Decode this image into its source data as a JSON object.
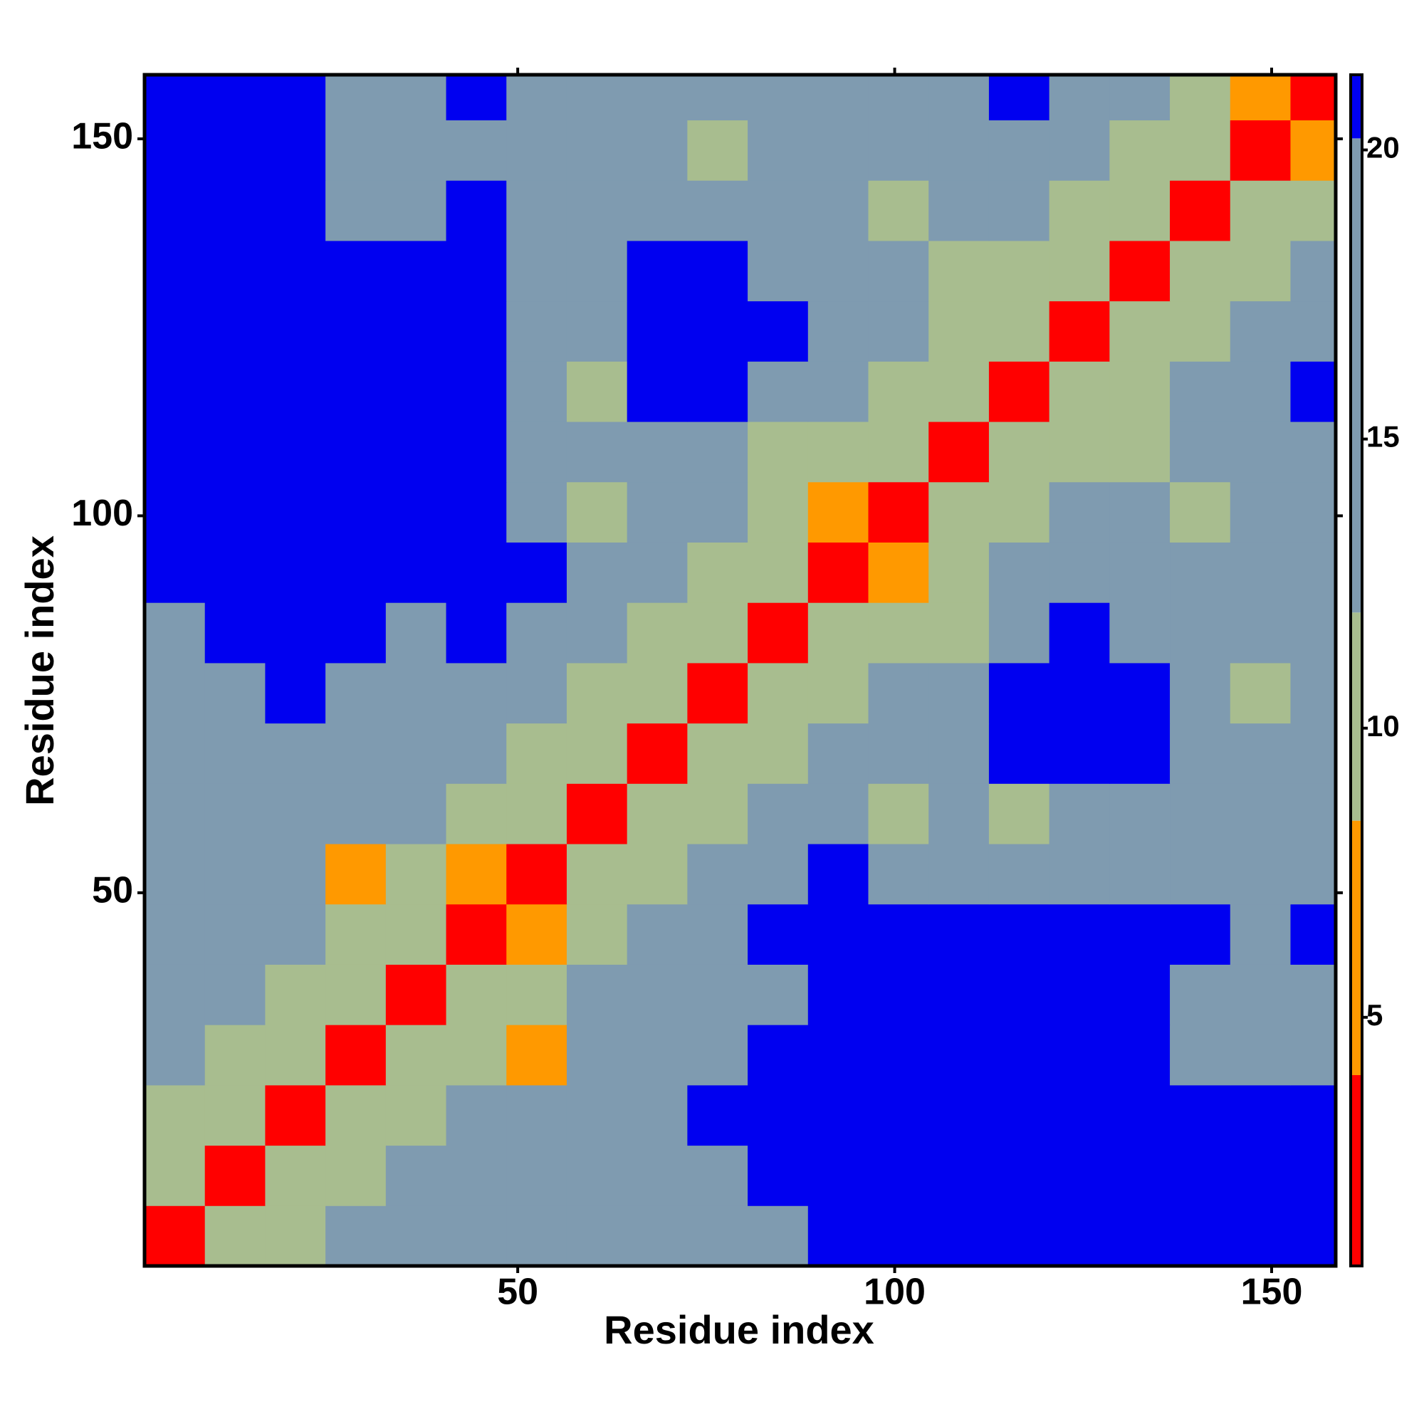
{
  "chart_data": {
    "type": "heatmap",
    "xlabel": "Residue index",
    "ylabel": "Residue index",
    "xlim": [
      0.5,
      158.5
    ],
    "ylim": [
      0.5,
      158.5
    ],
    "xticks": [
      50,
      100,
      150
    ],
    "yticks": [
      50,
      100,
      150
    ],
    "xbins": [
      0.5,
      8.5,
      16.5,
      24.5,
      32.5,
      40.5,
      48.5,
      56.5,
      64.5,
      72.5,
      80.5,
      88.5,
      96.5,
      104.5,
      112.5,
      120.5,
      128.5,
      136.5,
      144.5,
      152.5,
      158.5
    ],
    "ybins": [
      0.5,
      8.5,
      16.5,
      24.5,
      32.5,
      40.5,
      48.5,
      56.5,
      64.5,
      72.5,
      80.5,
      88.5,
      96.5,
      104.5,
      112.5,
      120.5,
      128.5,
      136.5,
      144.5,
      152.5,
      158.5
    ],
    "z": [
      [
        3,
        11,
        11,
        13,
        13,
        13,
        13,
        13,
        15,
        15,
        15,
        21,
        21,
        21,
        21,
        21,
        21,
        21,
        21,
        21
      ],
      [
        11,
        3,
        11,
        11,
        13,
        13,
        13,
        15,
        15,
        15,
        21,
        21,
        21,
        21,
        21,
        21,
        21,
        21,
        21,
        21
      ],
      [
        11,
        11,
        3,
        11,
        11,
        13,
        13,
        15,
        15,
        21,
        21,
        21,
        21,
        21,
        21,
        21,
        21,
        21,
        21,
        21
      ],
      [
        13,
        11,
        11,
        3,
        11,
        11,
        7,
        13,
        15,
        15,
        21,
        21,
        21,
        21,
        21,
        21,
        21,
        15,
        15,
        15
      ],
      [
        13,
        13,
        11,
        11,
        3,
        11,
        11,
        13,
        13,
        13,
        15,
        21,
        21,
        21,
        21,
        21,
        21,
        15,
        15,
        15
      ],
      [
        13,
        13,
        13,
        11,
        11,
        3,
        7,
        11,
        13,
        13,
        21,
        21,
        21,
        21,
        21,
        21,
        21,
        21,
        15,
        21
      ],
      [
        13,
        13,
        13,
        7,
        11,
        7,
        3,
        11,
        11,
        13,
        13,
        21,
        15,
        15,
        15,
        15,
        15,
        15,
        15,
        15
      ],
      [
        13,
        15,
        15,
        13,
        13,
        11,
        11,
        3,
        11,
        11,
        13,
        13,
        11,
        13,
        11,
        13,
        15,
        13,
        15,
        15
      ],
      [
        15,
        15,
        15,
        15,
        13,
        13,
        11,
        11,
        3,
        11,
        11,
        13,
        15,
        15,
        21,
        21,
        21,
        15,
        15,
        15
      ],
      [
        15,
        15,
        21,
        15,
        13,
        13,
        13,
        11,
        11,
        3,
        11,
        11,
        13,
        13,
        21,
        21,
        21,
        15,
        11,
        13
      ],
      [
        15,
        21,
        21,
        21,
        15,
        21,
        13,
        13,
        11,
        11,
        3,
        11,
        11,
        11,
        13,
        21,
        15,
        13,
        13,
        15
      ],
      [
        21,
        21,
        21,
        21,
        21,
        21,
        21,
        13,
        13,
        11,
        11,
        3,
        7,
        11,
        13,
        15,
        13,
        15,
        15,
        15
      ],
      [
        21,
        21,
        21,
        21,
        21,
        21,
        15,
        11,
        15,
        13,
        11,
        7,
        3,
        11,
        11,
        13,
        13,
        11,
        13,
        15
      ],
      [
        21,
        21,
        21,
        21,
        21,
        21,
        15,
        13,
        15,
        13,
        11,
        11,
        11,
        3,
        11,
        11,
        11,
        13,
        15,
        15
      ],
      [
        21,
        21,
        21,
        21,
        21,
        21,
        15,
        11,
        21,
        21,
        13,
        13,
        11,
        11,
        3,
        11,
        11,
        13,
        15,
        21
      ],
      [
        21,
        21,
        21,
        21,
        21,
        21,
        15,
        13,
        21,
        21,
        21,
        15,
        13,
        11,
        11,
        3,
        11,
        11,
        13,
        15
      ],
      [
        21,
        21,
        21,
        21,
        21,
        21,
        15,
        15,
        21,
        21,
        15,
        13,
        13,
        11,
        11,
        11,
        3,
        11,
        11,
        13
      ],
      [
        21,
        21,
        21,
        15,
        15,
        21,
        15,
        13,
        15,
        15,
        13,
        15,
        11,
        13,
        13,
        11,
        11,
        3,
        11,
        11
      ],
      [
        21,
        21,
        21,
        15,
        15,
        15,
        15,
        15,
        15,
        11,
        13,
        15,
        13,
        15,
        15,
        13,
        11,
        11,
        3,
        7
      ],
      [
        21,
        21,
        21,
        15,
        15,
        21,
        15,
        15,
        15,
        13,
        15,
        15,
        15,
        15,
        21,
        15,
        13,
        11,
        7,
        3
      ]
    ],
    "zlim": [
      0.7,
      21.3
    ],
    "zticks": [
      5,
      10,
      15,
      20
    ],
    "breaks": [
      0.7,
      4,
      8.4,
      12,
      20.2,
      21.3
    ],
    "colors": [
      "#ff0000",
      "#ff9900",
      "#a8bd8f",
      "#7f9bb0",
      "#0000f0"
    ]
  }
}
